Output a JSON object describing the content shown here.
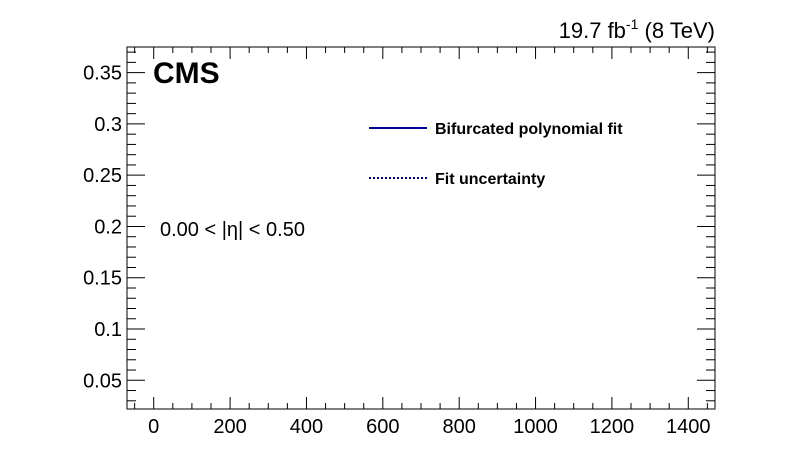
{
  "chart_data": {
    "type": "line",
    "title": "",
    "xlabel": "",
    "ylabel": "",
    "xlim": [
      -70,
      1470
    ],
    "ylim": [
      0.022,
      0.375
    ],
    "x_ticks": [
      0,
      200,
      400,
      600,
      800,
      1000,
      1200,
      1400
    ],
    "y_ticks": [
      0.05,
      0.1,
      0.15,
      0.2,
      0.25,
      0.3,
      0.35
    ],
    "x_tick_labels": [
      "0",
      "200",
      "400",
      "600",
      "800",
      "1000",
      "1200",
      "1400"
    ],
    "y_tick_labels": [
      "0.05",
      "0.1",
      "0.15",
      "0.2",
      "0.25",
      "0.3",
      "0.35"
    ],
    "grid": false,
    "legend_position": "top-right",
    "series": [
      {
        "name": "Bifurcated polynomial fit",
        "color": "#000099",
        "style": "solid",
        "values": []
      },
      {
        "name": "Fit uncertainty",
        "color": "#000099",
        "style": "dotted",
        "values": []
      }
    ],
    "lumi_label_main": "19.7 fb",
    "lumi_label_sup": "-1",
    "lumi_label_energy": " (8 TeV)",
    "experiment_label": "CMS",
    "annotation": "0.00 < |η| < 0.50"
  }
}
